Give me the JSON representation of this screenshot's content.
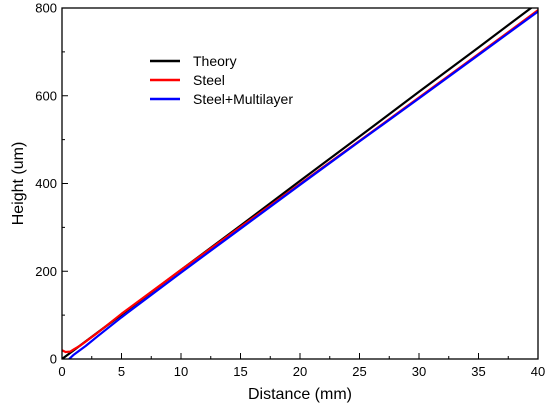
{
  "chart_data": {
    "type": "line",
    "title": "",
    "xlabel": "Distance (mm)",
    "ylabel": "Height (um)",
    "xlim": [
      0,
      40
    ],
    "ylim": [
      0,
      800
    ],
    "xticks": [
      0,
      5,
      10,
      15,
      20,
      25,
      30,
      35,
      40
    ],
    "yticks": [
      0,
      200,
      400,
      600,
      800
    ],
    "grid": false,
    "legend": "top-left",
    "series": [
      {
        "name": "Theory",
        "color": "#000000",
        "x": [
          0,
          5,
          10,
          15,
          20,
          25,
          30,
          35,
          40
        ],
        "y": [
          0,
          101,
          203,
          304,
          406,
          507,
          609,
          710,
          812
        ]
      },
      {
        "name": "Steel",
        "color": "#ff0000",
        "x": [
          0,
          0.3,
          0.7,
          1,
          1.5,
          2,
          3,
          5,
          10,
          15,
          20,
          25,
          30,
          35,
          40
        ],
        "y": [
          20,
          16,
          17,
          22,
          30,
          40,
          60,
          103,
          203,
          301,
          399,
          497,
          596,
          695,
          795
        ]
      },
      {
        "name": "Steel+Multilayer",
        "color": "#0000ff",
        "x": [
          0.6,
          1,
          1.5,
          2,
          3,
          5,
          10,
          15,
          20,
          25,
          30,
          35,
          40
        ],
        "y": [
          0,
          10,
          20,
          30,
          52,
          95,
          197,
          297,
          397,
          496,
          594,
          693,
          792
        ]
      }
    ]
  }
}
